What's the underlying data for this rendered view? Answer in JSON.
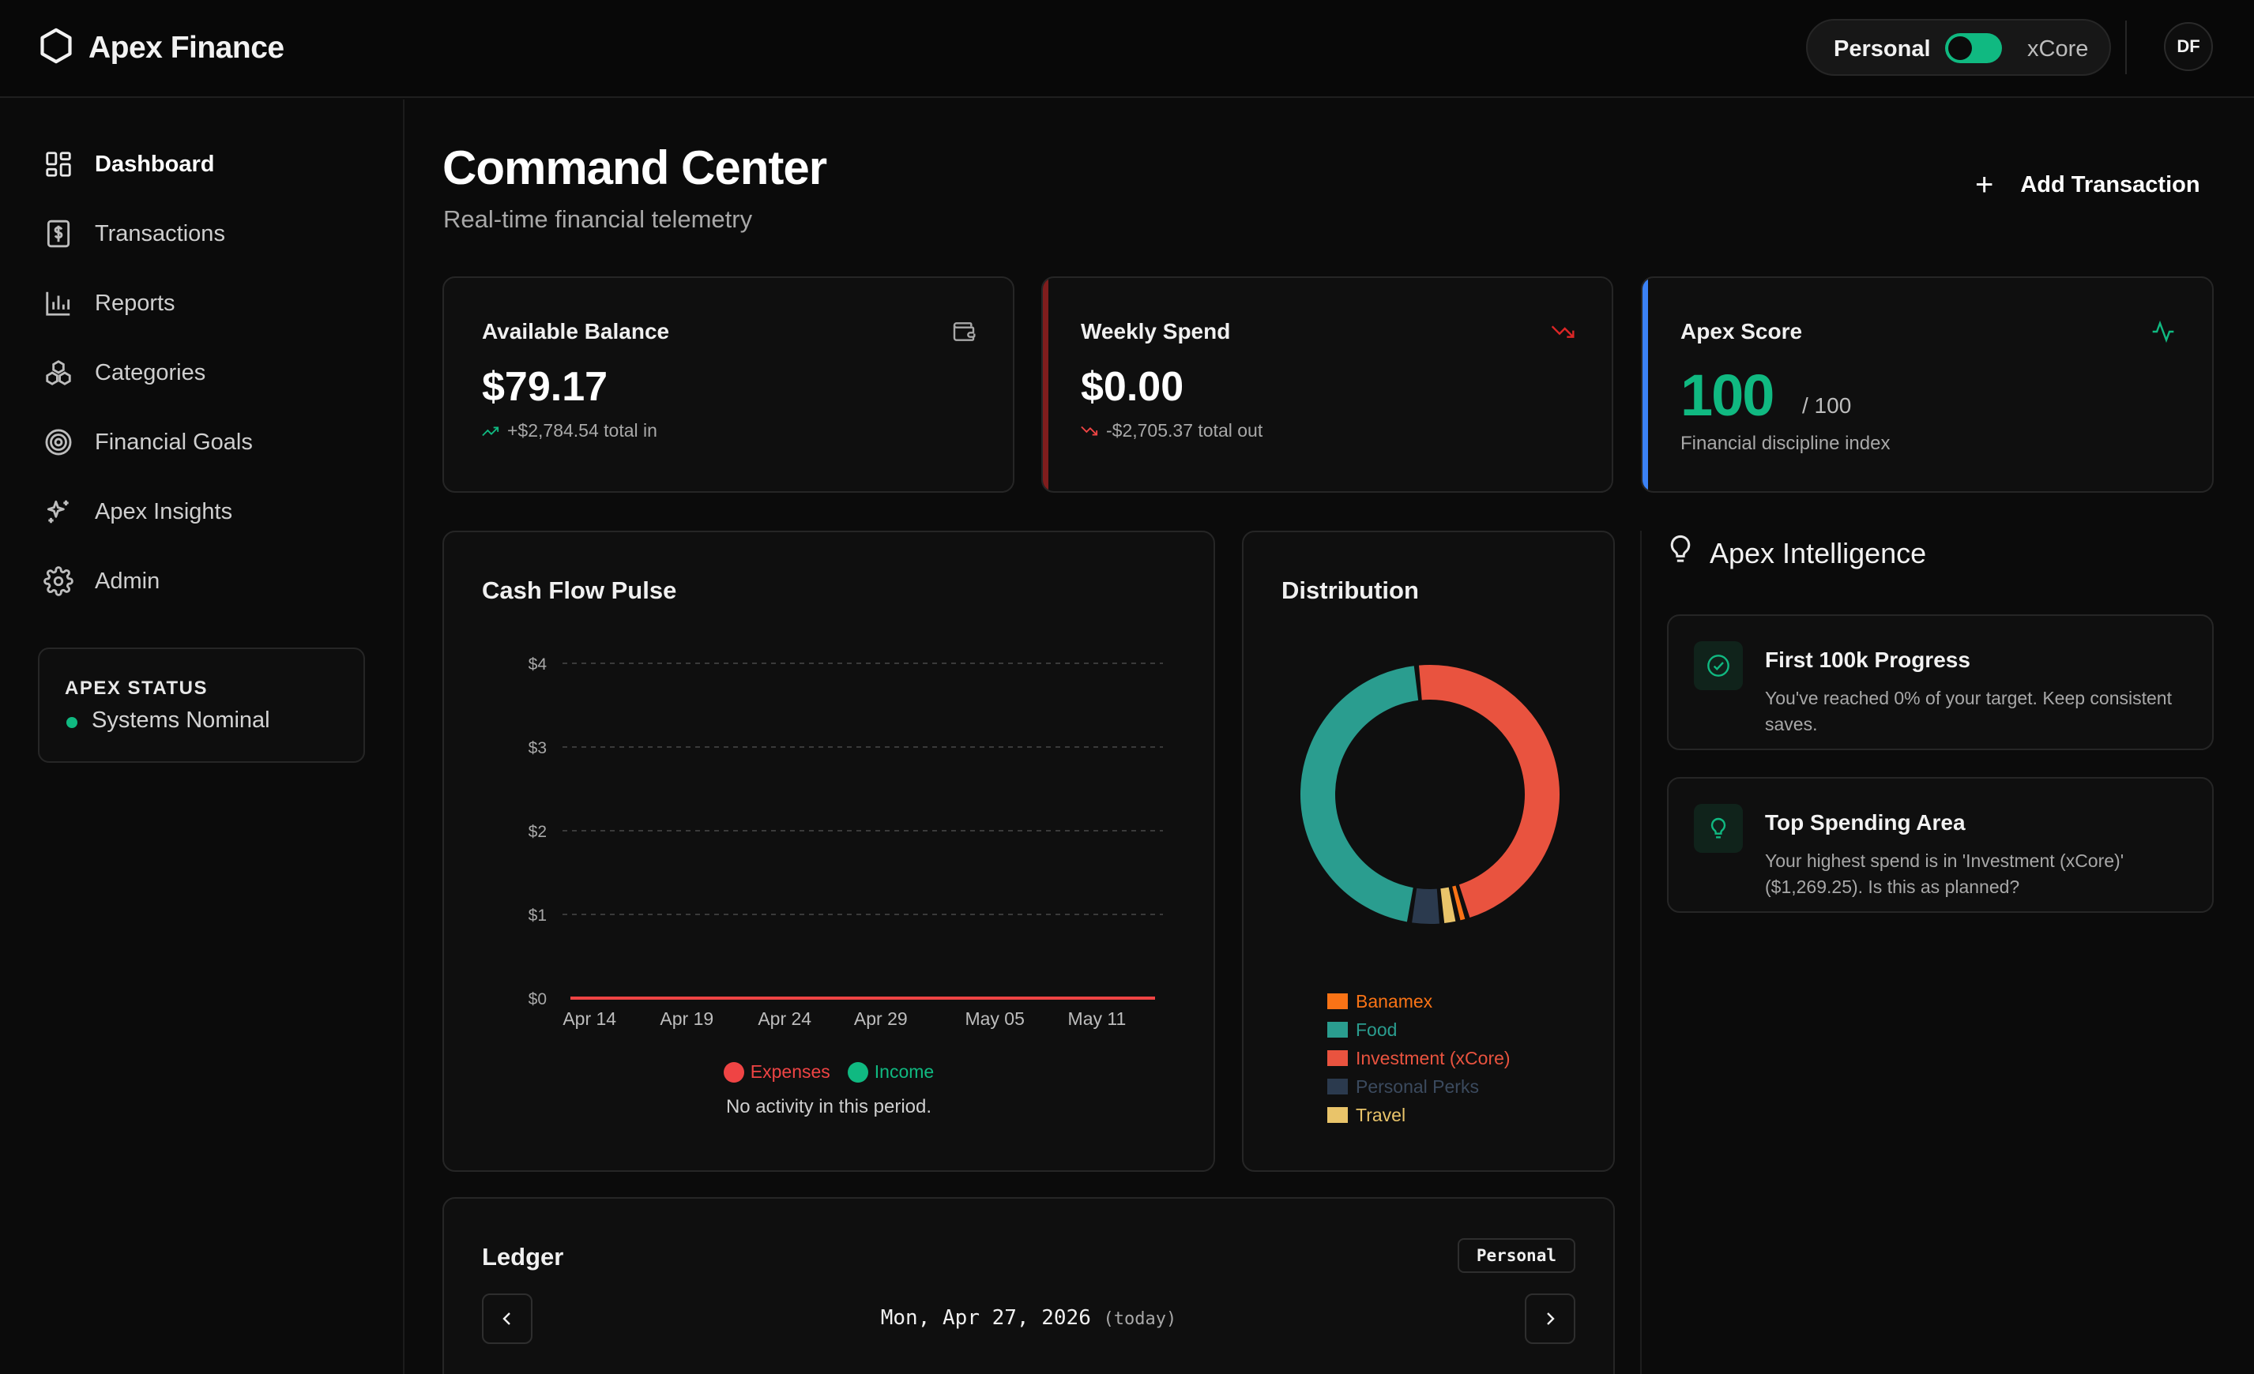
{
  "app": {
    "name": "Apex Finance"
  },
  "header": {
    "mode_left": "Personal",
    "mode_right": "xCore",
    "toggle_on": true,
    "avatar_initials": "DF"
  },
  "sidebar": {
    "items": [
      {
        "label": "Dashboard",
        "icon": "dashboard-icon",
        "active": true
      },
      {
        "label": "Transactions",
        "icon": "receipt-icon",
        "active": false
      },
      {
        "label": "Reports",
        "icon": "bar-chart-icon",
        "active": false
      },
      {
        "label": "Categories",
        "icon": "categories-icon",
        "active": false
      },
      {
        "label": "Financial Goals",
        "icon": "target-icon",
        "active": false
      },
      {
        "label": "Apex Insights",
        "icon": "sparkles-icon",
        "active": false
      },
      {
        "label": "Admin",
        "icon": "gear-icon",
        "active": false
      }
    ],
    "status": {
      "title": "APEX STATUS",
      "text": "Systems Nominal",
      "color": "#10b981"
    }
  },
  "page": {
    "title": "Command Center",
    "subtitle": "Real-time financial telemetry",
    "add_button": "Add Transaction"
  },
  "stats": {
    "balance": {
      "label": "Available Balance",
      "value": "$79.17",
      "sub": "+$2,784.54 total in",
      "icon": "wallet-icon"
    },
    "weekly": {
      "label": "Weekly Spend",
      "value": "$0.00",
      "sub": "-$2,705.37 total out",
      "icon": "trending-down-icon",
      "accent": "#7f1d1d"
    },
    "score": {
      "label": "Apex Score",
      "value": "100",
      "max": "/ 100",
      "sub": "Financial discipline index",
      "icon": "activity-icon",
      "accent": "#3b82f6"
    }
  },
  "cashflow": {
    "title": "Cash Flow Pulse",
    "legend": {
      "expenses": "Expenses",
      "income": "Income"
    },
    "empty_text": "No activity in this period."
  },
  "distribution": {
    "title": "Distribution"
  },
  "chart_data": [
    {
      "type": "line",
      "title": "Cash Flow Pulse",
      "x": [
        "Apr 14",
        "Apr 19",
        "Apr 24",
        "Apr 29",
        "May 05",
        "May 11"
      ],
      "y_ticks": [
        "$0",
        "$1",
        "$2",
        "$3",
        "$4"
      ],
      "ylim": [
        0,
        4
      ],
      "series": [
        {
          "name": "Expenses",
          "color": "#ef4444",
          "values": [
            0,
            0,
            0,
            0,
            0,
            0
          ]
        },
        {
          "name": "Income",
          "color": "#10b981",
          "values": [
            0,
            0,
            0,
            0,
            0,
            0
          ]
        }
      ],
      "grid": true,
      "legend": "bottom"
    },
    {
      "type": "pie",
      "title": "Distribution",
      "labels": [
        "Banamex",
        "Food",
        "Investment (xCore)",
        "Personal Perks",
        "Travel"
      ],
      "colors": [
        "#f97316",
        "#2a9d8f",
        "#e9533f",
        "#2b3a4e",
        "#e9c46a"
      ],
      "values": [
        1.2,
        45.8,
        47.0,
        4.0,
        2.0
      ],
      "legend": "bottom"
    }
  ],
  "intelligence": {
    "title": "Apex Intelligence",
    "cards": [
      {
        "title": "First 100k Progress",
        "body": "You've reached 0% of your target. Keep consistent saves.",
        "icon": "check-circle-icon"
      },
      {
        "title": "Top Spending Area",
        "body": "Your highest spend is in 'Investment (xCore)' ($1,269.25). Is this as planned?",
        "icon": "lightbulb-icon"
      }
    ]
  },
  "ledger": {
    "title": "Ledger",
    "badge": "Personal",
    "date": "Mon, Apr 27, 2026",
    "date_suffix": "(today)"
  },
  "colors": {
    "accent": "#10b981",
    "danger": "#ef4444",
    "info": "#3b82f6",
    "background": "#0b0b0b",
    "card": "#0f0f0f"
  }
}
